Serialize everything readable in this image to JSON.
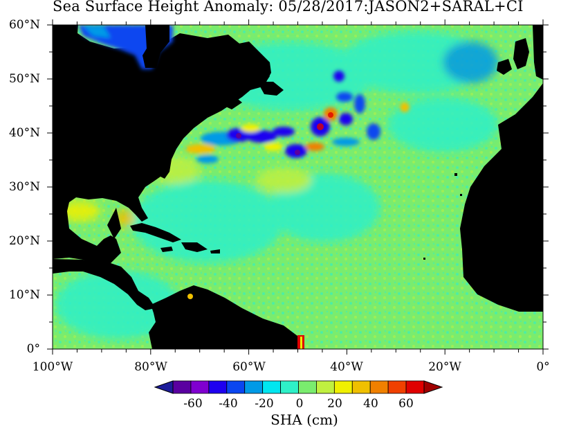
{
  "title": "Sea Surface Height Anomaly: 05/28/2017:JASON2+SARAL+CI",
  "lat_labels": [
    "60°N",
    "50°N",
    "40°N",
    "30°N",
    "20°N",
    "10°N",
    "0°"
  ],
  "lon_labels": [
    "100°W",
    "80°W",
    "60°W",
    "40°W",
    "20°W",
    "0°"
  ],
  "colorbar": {
    "title": "SHA (cm)",
    "tick_labels": [
      "-60",
      "-40",
      "-20",
      "0",
      "20",
      "40",
      "60"
    ],
    "colors": [
      "#5a00a0",
      "#8000d0",
      "#1e00f0",
      "#0a46f0",
      "#009ae6",
      "#00e6f0",
      "#2ef0c8",
      "#7aec6e",
      "#c0f040",
      "#f0f000",
      "#f0c000",
      "#f08000",
      "#f04000",
      "#e00000"
    ],
    "under_color": "#1c1c9a",
    "over_color": "#a00000"
  },
  "map_colors": {
    "ocean_base": "#7aec6e",
    "land": "#000000",
    "anomaly_low": "#1e00f0",
    "anomaly_mid_low": "#009ae6",
    "anomaly_teal": "#2ef0c8",
    "anomaly_high": "#f0f000",
    "anomaly_higher": "#f08000",
    "anomaly_extreme": "#e00000"
  },
  "map_extent": {
    "lon_min": -100,
    "lon_max": 0,
    "lat_min": 0,
    "lat_max": 60
  }
}
